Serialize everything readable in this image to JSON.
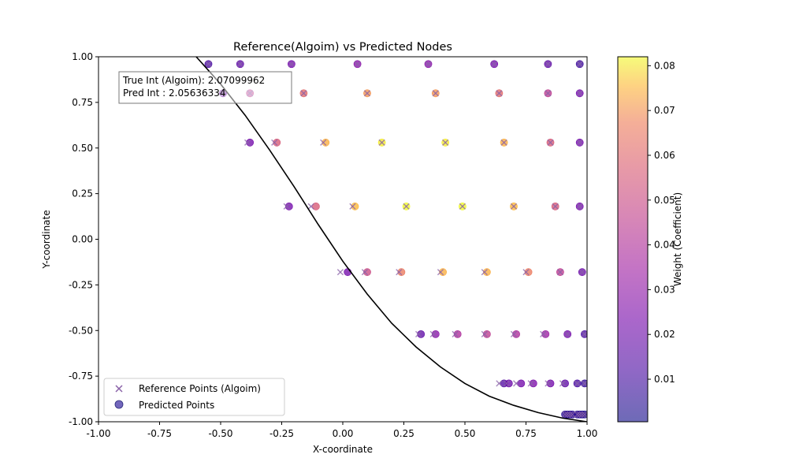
{
  "chart_data": {
    "type": "scatter",
    "title": "Reference(Algoim) vs Predicted Nodes",
    "xlabel": "X-coordinate",
    "ylabel": "Y-coordinate",
    "xlim": [
      -1.0,
      1.0
    ],
    "ylim": [
      -1.0,
      1.0
    ],
    "x_ticks": [
      "-1.00",
      "-0.75",
      "-0.50",
      "-0.25",
      "0.00",
      "0.25",
      "0.50",
      "0.75",
      "1.00"
    ],
    "y_ticks": [
      "-1.00",
      "-0.75",
      "-0.50",
      "-0.25",
      "0.00",
      "0.25",
      "0.50",
      "0.75",
      "1.00"
    ],
    "grid": false,
    "legend_position": "bottom-left",
    "annotation": {
      "line1": "True Int (Algoim): 2.07099962",
      "line2": "Pred Int : 2.05636334"
    },
    "colorbar": {
      "label": "Weight (Coefficient)",
      "colormap": "plasma",
      "min": 0.0005,
      "max": 0.082,
      "ticks": [
        "0.01",
        "0.02",
        "0.03",
        "0.04",
        "0.05",
        "0.06",
        "0.07",
        "0.08"
      ]
    },
    "boundary_curve": {
      "points": [
        [
          -0.6,
          1.0
        ],
        [
          -0.5,
          0.85
        ],
        [
          -0.4,
          0.68
        ],
        [
          -0.3,
          0.49
        ],
        [
          -0.2,
          0.29
        ],
        [
          -0.1,
          0.08
        ],
        [
          0.0,
          -0.12
        ],
        [
          0.1,
          -0.3
        ],
        [
          0.2,
          -0.46
        ],
        [
          0.3,
          -0.59
        ],
        [
          0.4,
          -0.7
        ],
        [
          0.5,
          -0.79
        ],
        [
          0.6,
          -0.86
        ],
        [
          0.7,
          -0.91
        ],
        [
          0.8,
          -0.95
        ],
        [
          0.9,
          -0.98
        ],
        [
          1.0,
          -1.0
        ]
      ]
    },
    "series": [
      {
        "name": "Reference Points (Algoim)",
        "marker": "x",
        "color": "#8a62a8",
        "points": [
          [
            -0.55,
            0.96
          ],
          [
            -0.42,
            0.96
          ],
          [
            -0.21,
            0.96
          ],
          [
            0.06,
            0.96
          ],
          [
            0.35,
            0.96
          ],
          [
            0.62,
            0.96
          ],
          [
            0.84,
            0.96
          ],
          [
            0.97,
            0.96
          ],
          [
            -0.49,
            0.8
          ],
          [
            -0.38,
            0.8
          ],
          [
            -0.16,
            0.8
          ],
          [
            0.1,
            0.8
          ],
          [
            0.38,
            0.8
          ],
          [
            0.64,
            0.8
          ],
          [
            0.84,
            0.8
          ],
          [
            0.97,
            0.8
          ],
          [
            -0.39,
            0.53
          ],
          [
            -0.28,
            0.53
          ],
          [
            -0.08,
            0.53
          ],
          [
            0.16,
            0.53
          ],
          [
            0.42,
            0.53
          ],
          [
            0.66,
            0.53
          ],
          [
            0.85,
            0.53
          ],
          [
            0.97,
            0.53
          ],
          [
            -0.23,
            0.18
          ],
          [
            -0.13,
            0.18
          ],
          [
            0.04,
            0.18
          ],
          [
            0.26,
            0.18
          ],
          [
            0.49,
            0.18
          ],
          [
            0.7,
            0.18
          ],
          [
            0.87,
            0.18
          ],
          [
            0.97,
            0.18
          ],
          [
            -0.01,
            -0.18
          ],
          [
            0.09,
            -0.18
          ],
          [
            0.23,
            -0.18
          ],
          [
            0.4,
            -0.18
          ],
          [
            0.58,
            -0.18
          ],
          [
            0.75,
            -0.18
          ],
          [
            0.89,
            -0.18
          ],
          [
            0.98,
            -0.18
          ],
          [
            0.31,
            -0.52
          ],
          [
            0.37,
            -0.52
          ],
          [
            0.46,
            -0.52
          ],
          [
            0.58,
            -0.52
          ],
          [
            0.7,
            -0.52
          ],
          [
            0.82,
            -0.52
          ],
          [
            0.92,
            -0.52
          ],
          [
            0.99,
            -0.52
          ],
          [
            0.64,
            -0.79
          ],
          [
            0.67,
            -0.79
          ],
          [
            0.71,
            -0.79
          ],
          [
            0.77,
            -0.79
          ],
          [
            0.84,
            -0.79
          ],
          [
            0.9,
            -0.79
          ],
          [
            0.96,
            -0.79
          ],
          [
            0.99,
            -0.79
          ],
          [
            0.91,
            -0.96
          ],
          [
            0.92,
            -0.96
          ],
          [
            0.93,
            -0.96
          ],
          [
            0.94,
            -0.96
          ],
          [
            0.96,
            -0.96
          ],
          [
            0.97,
            -0.96
          ],
          [
            0.98,
            -0.96
          ],
          [
            0.99,
            -0.96
          ]
        ]
      },
      {
        "name": "Predicted Points",
        "marker": "o",
        "color": "#5b4cb0",
        "points": [
          [
            -0.55,
            0.96,
            0.01
          ],
          [
            -0.42,
            0.96,
            0.015
          ],
          [
            -0.21,
            0.96,
            0.02
          ],
          [
            0.06,
            0.96,
            0.025
          ],
          [
            0.35,
            0.96,
            0.025
          ],
          [
            0.62,
            0.96,
            0.02
          ],
          [
            0.84,
            0.96,
            0.015
          ],
          [
            0.97,
            0.96,
            0.008
          ],
          [
            -0.49,
            0.8,
            0.02
          ],
          [
            -0.38,
            0.8,
            0.04
          ],
          [
            -0.16,
            0.8,
            0.055
          ],
          [
            0.1,
            0.8,
            0.065
          ],
          [
            0.38,
            0.8,
            0.065
          ],
          [
            0.64,
            0.8,
            0.055
          ],
          [
            0.84,
            0.8,
            0.04
          ],
          [
            0.97,
            0.8,
            0.02
          ],
          [
            -0.38,
            0.53,
            0.02
          ],
          [
            -0.27,
            0.53,
            0.05
          ],
          [
            -0.07,
            0.53,
            0.07
          ],
          [
            0.16,
            0.53,
            0.08
          ],
          [
            0.42,
            0.53,
            0.08
          ],
          [
            0.66,
            0.53,
            0.07
          ],
          [
            0.85,
            0.53,
            0.05
          ],
          [
            0.97,
            0.53,
            0.02
          ],
          [
            -0.22,
            0.18,
            0.02
          ],
          [
            -0.11,
            0.18,
            0.05
          ],
          [
            0.05,
            0.18,
            0.072
          ],
          [
            0.26,
            0.18,
            0.082
          ],
          [
            0.49,
            0.18,
            0.082
          ],
          [
            0.7,
            0.18,
            0.072
          ],
          [
            0.87,
            0.18,
            0.05
          ],
          [
            0.97,
            0.18,
            0.02
          ],
          [
            0.02,
            -0.18,
            0.02
          ],
          [
            0.1,
            -0.18,
            0.045
          ],
          [
            0.24,
            -0.18,
            0.06
          ],
          [
            0.41,
            -0.18,
            0.07
          ],
          [
            0.59,
            -0.18,
            0.07
          ],
          [
            0.76,
            -0.18,
            0.06
          ],
          [
            0.89,
            -0.18,
            0.04
          ],
          [
            0.98,
            -0.18,
            0.018
          ],
          [
            0.32,
            -0.52,
            0.015
          ],
          [
            0.38,
            -0.52,
            0.025
          ],
          [
            0.47,
            -0.52,
            0.035
          ],
          [
            0.59,
            -0.52,
            0.04
          ],
          [
            0.71,
            -0.52,
            0.035
          ],
          [
            0.83,
            -0.52,
            0.03
          ],
          [
            0.92,
            -0.52,
            0.02
          ],
          [
            0.99,
            -0.52,
            0.01
          ],
          [
            0.66,
            -0.79,
            0.012
          ],
          [
            0.68,
            -0.79,
            0.018
          ],
          [
            0.73,
            -0.79,
            0.02
          ],
          [
            0.78,
            -0.79,
            0.022
          ],
          [
            0.85,
            -0.79,
            0.02
          ],
          [
            0.91,
            -0.79,
            0.015
          ],
          [
            0.96,
            -0.79,
            0.01
          ],
          [
            0.99,
            -0.79,
            0.006
          ],
          [
            0.91,
            -0.96,
            0.004
          ],
          [
            0.92,
            -0.96,
            0.004
          ],
          [
            0.93,
            -0.96,
            0.004
          ],
          [
            0.94,
            -0.96,
            0.004
          ],
          [
            0.96,
            -0.96,
            0.004
          ],
          [
            0.97,
            -0.96,
            0.004
          ],
          [
            0.98,
            -0.96,
            0.003
          ],
          [
            0.99,
            -0.96,
            0.002
          ]
        ]
      }
    ]
  }
}
